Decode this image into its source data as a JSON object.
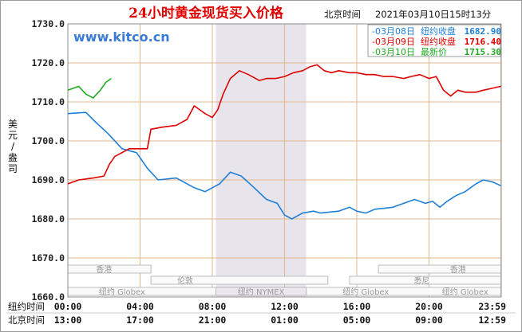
{
  "header": {
    "title": "24小时黄金现货买入价格",
    "beijing_label": "北京时间",
    "datetime": "2021年03月10日15时13分",
    "site": "www.kitco.cn"
  },
  "legend": [
    {
      "label": "03月08日",
      "desc": "纽约收盘",
      "value": "1682.90",
      "color": "#1e7fd8"
    },
    {
      "label": "03月09日",
      "desc": "纽约收盘",
      "value": "1716.40",
      "color": "#dd0000"
    },
    {
      "label": "03月10日",
      "desc": "最新价",
      "value": "1715.30",
      "color": "#22aa22"
    }
  ],
  "market_labels": {
    "hk1": "香港",
    "ny1": "纽约 Globex",
    "london": "伦敦",
    "nymex": "纽约 NYMEX",
    "ny2": "纽约 Globex",
    "hk2": "香港",
    "sydney": "悉尼",
    "ny3": "纽约 Globex"
  },
  "bottom_rows": {
    "ny_label": "纽约时间",
    "bj_label": "北京时间"
  },
  "chart_data": {
    "type": "line",
    "ylabel": "美元/盎司",
    "ylim": [
      1660,
      1730
    ],
    "y_ticks": [
      "1730.0",
      "1720.0",
      "1710.0",
      "1700.0",
      "1690.0",
      "1680.0",
      "1670.0",
      "1660.0"
    ],
    "y_tick_values": [
      1730,
      1720,
      1710,
      1700,
      1690,
      1680,
      1670,
      1660
    ],
    "x_range": [
      0,
      24
    ],
    "x_tick_hours": [
      0,
      4,
      8,
      12,
      16,
      20,
      23.983
    ],
    "x_ticks_ny": [
      "00:00",
      "04:00",
      "08:00",
      "12:00",
      "16:00",
      "20:00",
      "23:59"
    ],
    "x_ticks_bj": [
      "13:00",
      "17:00",
      "21:00",
      "01:00",
      "05:00",
      "09:00",
      "12:59"
    ],
    "shaded_hours": [
      8.2,
      13.2
    ],
    "grid": true,
    "series": [
      {
        "color": "#1e7fd8",
        "points": [
          [
            0,
            1707
          ],
          [
            1,
            1707.3
          ],
          [
            1.5,
            1705
          ],
          [
            2.2,
            1702
          ],
          [
            3,
            1698
          ],
          [
            3.8,
            1697
          ],
          [
            4.4,
            1693
          ],
          [
            5,
            1690
          ],
          [
            6,
            1690.5
          ],
          [
            7,
            1688
          ],
          [
            7.6,
            1687
          ],
          [
            8.4,
            1689
          ],
          [
            9,
            1692
          ],
          [
            9.6,
            1691
          ],
          [
            10.2,
            1688.5
          ],
          [
            11,
            1685
          ],
          [
            11.6,
            1684
          ],
          [
            12,
            1681
          ],
          [
            12.4,
            1680
          ],
          [
            13,
            1681.5
          ],
          [
            13.6,
            1682
          ],
          [
            14,
            1681.5
          ],
          [
            15,
            1682
          ],
          [
            15.6,
            1683
          ],
          [
            16,
            1682
          ],
          [
            16.5,
            1681.5
          ],
          [
            17,
            1682.5
          ],
          [
            18,
            1683
          ],
          [
            18.6,
            1684
          ],
          [
            19.2,
            1685
          ],
          [
            19.8,
            1684
          ],
          [
            20.2,
            1684.5
          ],
          [
            20.6,
            1683
          ],
          [
            21,
            1684.5
          ],
          [
            21.5,
            1686
          ],
          [
            22,
            1687
          ],
          [
            22.6,
            1689
          ],
          [
            23,
            1690
          ],
          [
            23.5,
            1689.5
          ],
          [
            23.983,
            1688.5
          ]
        ]
      },
      {
        "color": "#dd0000",
        "points": [
          [
            0,
            1689
          ],
          [
            0.6,
            1690
          ],
          [
            1.4,
            1690.5
          ],
          [
            2,
            1691
          ],
          [
            2.3,
            1694
          ],
          [
            2.6,
            1696
          ],
          [
            3,
            1697
          ],
          [
            3.4,
            1698
          ],
          [
            4,
            1698
          ],
          [
            4.4,
            1698
          ],
          [
            4.6,
            1703
          ],
          [
            5.2,
            1703.5
          ],
          [
            6,
            1704
          ],
          [
            6.6,
            1705.5
          ],
          [
            7,
            1709
          ],
          [
            7.6,
            1707
          ],
          [
            8,
            1706
          ],
          [
            8.3,
            1708
          ],
          [
            8.6,
            1712
          ],
          [
            9,
            1716
          ],
          [
            9.5,
            1718
          ],
          [
            10,
            1717
          ],
          [
            10.6,
            1715.5
          ],
          [
            11,
            1716
          ],
          [
            11.5,
            1716
          ],
          [
            12,
            1716.5
          ],
          [
            12.5,
            1717.5
          ],
          [
            13,
            1718
          ],
          [
            13.4,
            1719
          ],
          [
            13.8,
            1719.5
          ],
          [
            14.2,
            1718
          ],
          [
            14.6,
            1717.5
          ],
          [
            15,
            1718
          ],
          [
            15.6,
            1717.5
          ],
          [
            16,
            1717.5
          ],
          [
            16.5,
            1717
          ],
          [
            17,
            1717
          ],
          [
            17.5,
            1716.5
          ],
          [
            18,
            1716.5
          ],
          [
            18.6,
            1716
          ],
          [
            19,
            1716.5
          ],
          [
            19.5,
            1717
          ],
          [
            20,
            1716
          ],
          [
            20.4,
            1716.5
          ],
          [
            20.8,
            1713
          ],
          [
            21.2,
            1711.5
          ],
          [
            21.6,
            1713
          ],
          [
            22,
            1712.5
          ],
          [
            22.6,
            1712.5
          ],
          [
            23,
            1713
          ],
          [
            23.5,
            1713.5
          ],
          [
            23.983,
            1714
          ]
        ]
      },
      {
        "color": "#22aa22",
        "points": [
          [
            0,
            1713
          ],
          [
            0.3,
            1713.5
          ],
          [
            0.6,
            1714
          ],
          [
            1,
            1712
          ],
          [
            1.4,
            1711
          ],
          [
            1.8,
            1713
          ],
          [
            2.1,
            1715
          ],
          [
            2.4,
            1716
          ]
        ]
      }
    ]
  }
}
